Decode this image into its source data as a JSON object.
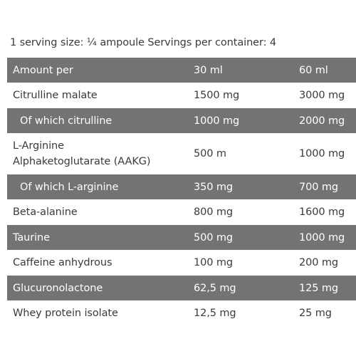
{
  "serving_info": "1 serving size: ¼ ampoule Servings per container: 4",
  "table": {
    "header": {
      "label": "Amount per",
      "col1": "30 ml",
      "col2": "60 ml"
    },
    "rows": [
      {
        "label": "Citrulline malate",
        "col1": "1500 mg",
        "col2": "3000 mg"
      },
      {
        "label": "Of which citrulline",
        "col1": "1000 mg",
        "col2": "2000 mg"
      },
      {
        "label_line1": "L-Arginine",
        "label_line2": "Alphaketoglutarate (AAKG)",
        "col1": "500 m",
        "col2": "1000 mg"
      },
      {
        "label": "Of which L-arginine",
        "col1": "350 mg",
        "col2": "700 mg"
      },
      {
        "label": "Beta-alanine",
        "col1": "800 mg",
        "col2": "1600 mg"
      },
      {
        "label": "Taurine",
        "col1": "500 mg",
        "col2": "1000 mg"
      },
      {
        "label": "Caffeine anhydrous",
        "col1": "100 mg",
        "col2": "200 mg"
      },
      {
        "label": "Glucuronolactone",
        "col1": "62,5 mg",
        "col2": "125 mg"
      },
      {
        "label": "Whey protein isolate",
        "col1": "12,5 mg",
        "col2": "25 mg"
      }
    ]
  },
  "colors": {
    "shaded_row": "#737373",
    "text": "#3a3a3a",
    "background": "#ffffff"
  }
}
